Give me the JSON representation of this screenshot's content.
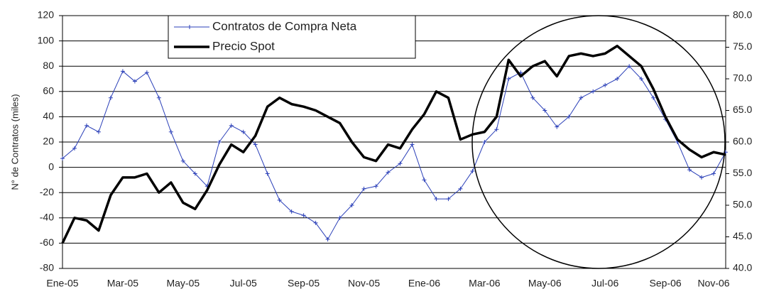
{
  "chart_data": {
    "type": "line",
    "y_label": "N° de Contratos (miles)",
    "categories": [
      "Ene-05",
      null,
      null,
      null,
      null,
      "Mar-05",
      null,
      null,
      null,
      null,
      "May-05",
      null,
      null,
      null,
      null,
      "Jul-05",
      null,
      null,
      null,
      null,
      "Sep-05",
      null,
      null,
      null,
      null,
      "Nov-05",
      null,
      null,
      null,
      null,
      "Ene-06",
      null,
      null,
      null,
      null,
      "Mar-06",
      null,
      null,
      null,
      null,
      "May-06",
      null,
      null,
      null,
      null,
      "Jul-06",
      null,
      null,
      null,
      null,
      "Sep-06",
      null,
      null,
      null,
      "Nov-06",
      null
    ],
    "series": [
      {
        "name": "Contratos de Compra Neta",
        "color": "#2a3fb8",
        "axis": "y",
        "markers": true,
        "values": [
          7,
          15,
          33,
          28,
          55,
          76,
          68,
          75,
          55,
          28,
          5,
          -5,
          -15,
          20,
          33,
          28,
          18,
          -5,
          -26,
          -35,
          -38,
          -44,
          -57,
          -40,
          -30,
          -17,
          -15,
          -4,
          3,
          18,
          -10,
          -25,
          -25,
          -17,
          -3,
          20,
          30,
          70,
          75,
          55,
          45,
          32,
          40,
          55,
          60,
          65,
          70,
          80,
          70,
          55,
          38,
          20,
          -2,
          -8,
          -5,
          12
        ]
      },
      {
        "name": "Precio Spot",
        "color": "#000000",
        "axis": "y2",
        "markers": false,
        "values": [
          44,
          48,
          47.6,
          46,
          51.6,
          54.4,
          54.4,
          55,
          52,
          53.6,
          50.4,
          49.4,
          52.4,
          56.4,
          59.6,
          58.4,
          61,
          65.6,
          67,
          66,
          65.6,
          65,
          64,
          63,
          60,
          57.6,
          57,
          59.6,
          59,
          62,
          64.4,
          68,
          67,
          60.4,
          61.2,
          61.6,
          64,
          73,
          70.4,
          72,
          72.8,
          70.4,
          73.6,
          74,
          73.6,
          74,
          75.2,
          73.6,
          72,
          68.4,
          64,
          60.4,
          58.8,
          57.6,
          58.4,
          58
        ]
      }
    ],
    "ylim": [
      -80,
      120
    ],
    "yticks": [
      -80,
      -60,
      -40,
      -20,
      0,
      20,
      40,
      60,
      80,
      100,
      120
    ],
    "y2lim": [
      40,
      80
    ],
    "y2ticks": [
      {
        "value": 40,
        "label": "40.0"
      },
      {
        "value": 45,
        "label": "45.0"
      },
      {
        "value": 50,
        "label": "50.0"
      },
      {
        "value": 55,
        "label": "55.0"
      },
      {
        "value": 60,
        "label": "60.0"
      },
      {
        "value": 65,
        "label": "65.0"
      },
      {
        "value": 70,
        "label": "70.0"
      },
      {
        "value": 75,
        "label": "75.0"
      },
      {
        "value": 80,
        "label": "80.0"
      }
    ],
    "grid": true,
    "legend": "top"
  }
}
